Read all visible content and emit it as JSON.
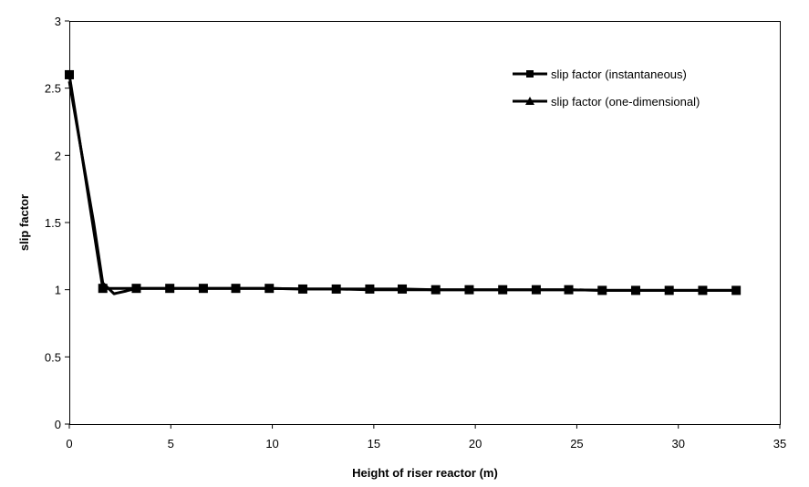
{
  "chart_data": {
    "type": "line",
    "title": "",
    "xlabel": "Height of riser reactor (m)",
    "ylabel": "slip factor",
    "xlim": [
      0,
      35
    ],
    "ylim": [
      0,
      3
    ],
    "x_ticks": [
      "0",
      "5",
      "10",
      "15",
      "20",
      "25",
      "30",
      "35"
    ],
    "y_ticks": [
      "0",
      "0.5",
      "1",
      "1.5",
      "2",
      "2.5",
      "3"
    ],
    "grid": false,
    "legend_position": "top-right",
    "series": [
      {
        "name": "slip factor (instantaneous)",
        "marker": "square",
        "color": "#000000",
        "x": [
          0,
          1.65,
          3.3,
          4.95,
          6.6,
          8.2,
          9.85,
          11.5,
          13.15,
          14.8,
          16.4,
          18.05,
          19.7,
          21.35,
          23.0,
          24.6,
          26.25,
          27.9,
          29.55,
          31.2,
          32.85
        ],
        "y": [
          2.6,
          1.01,
          1.01,
          1.01,
          1.01,
          1.01,
          1.01,
          1.005,
          1.005,
          1.005,
          1.005,
          1.0,
          1.0,
          1.0,
          1.0,
          1.0,
          0.995,
          0.995,
          0.995,
          0.995,
          0.995
        ]
      },
      {
        "name": "slip factor (one-dimensional)",
        "marker": "triangle",
        "color": "#000000",
        "x": [
          0,
          0.4,
          0.8,
          1.2,
          1.65,
          2.2,
          2.8,
          3.3,
          4.95,
          6.6,
          8.2,
          9.85,
          11.5,
          13.15,
          14.8,
          16.4,
          18.05,
          19.7,
          21.35,
          23.0,
          24.6,
          26.25,
          27.9,
          29.55,
          31.2,
          32.85
        ],
        "y": [
          2.55,
          2.2,
          1.85,
          1.5,
          1.05,
          0.97,
          0.99,
          1.01,
          1.01,
          1.01,
          1.01,
          1.01,
          1.005,
          1.005,
          1.0,
          1.0,
          1.0,
          1.0,
          1.0,
          1.0,
          1.0,
          0.995,
          0.995,
          0.995,
          0.995,
          0.995
        ]
      }
    ]
  }
}
